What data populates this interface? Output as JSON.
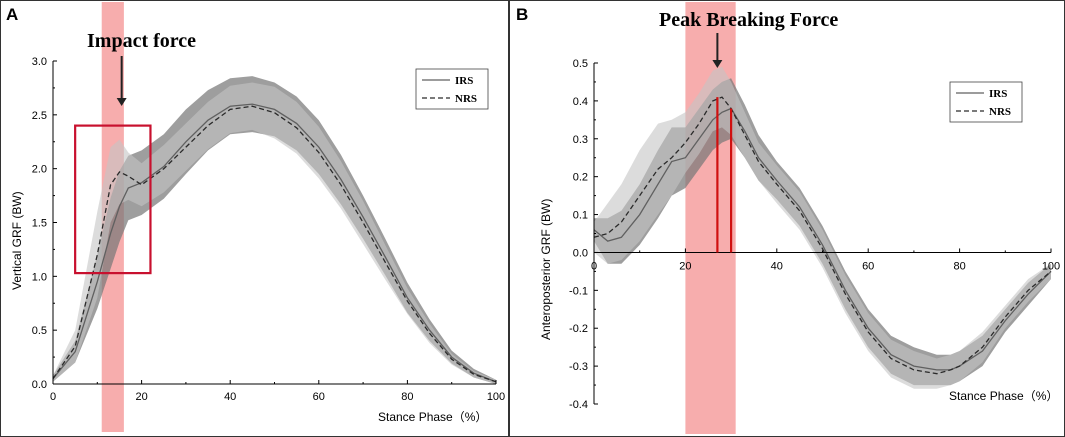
{
  "chart_data": [
    {
      "type": "line",
      "panel_label": "A",
      "annotation": "Impact force",
      "xlabel": "Stance Phase（%）",
      "ylabel": "Vertical GRF (BW)",
      "xlim": [
        0,
        100
      ],
      "ylim": [
        0,
        3.0
      ],
      "xticks": [
        0,
        20,
        40,
        60,
        80,
        100
      ],
      "yticks": [
        0.0,
        0.5,
        1.0,
        1.5,
        2.0,
        2.5,
        3.0
      ],
      "highlight_band_x": [
        11,
        16
      ],
      "highlight_box": {
        "x": [
          5,
          22
        ],
        "y": [
          1.03,
          2.4
        ]
      },
      "arrow_x": 15.5,
      "series": [
        {
          "name": "IRS",
          "style": "solid",
          "x": [
            0,
            5,
            10,
            13,
            15,
            17,
            20,
            25,
            30,
            35,
            40,
            45,
            50,
            55,
            60,
            65,
            70,
            75,
            80,
            85,
            90,
            95,
            100
          ],
          "mean": [
            0.05,
            0.3,
            0.95,
            1.4,
            1.65,
            1.82,
            1.87,
            2.02,
            2.25,
            2.45,
            2.58,
            2.6,
            2.55,
            2.42,
            2.2,
            1.9,
            1.55,
            1.18,
            0.8,
            0.5,
            0.25,
            0.1,
            0.02
          ],
          "sd": [
            0.03,
            0.1,
            0.25,
            0.33,
            0.33,
            0.3,
            0.3,
            0.3,
            0.3,
            0.28,
            0.26,
            0.26,
            0.25,
            0.25,
            0.25,
            0.23,
            0.2,
            0.17,
            0.14,
            0.1,
            0.06,
            0.04,
            0.02
          ]
        },
        {
          "name": "NRS",
          "style": "dashed",
          "x": [
            0,
            5,
            10,
            13,
            15,
            17,
            20,
            25,
            30,
            35,
            40,
            45,
            50,
            55,
            60,
            65,
            70,
            75,
            80,
            85,
            90,
            95,
            100
          ],
          "mean": [
            0.05,
            0.35,
            1.2,
            1.85,
            1.97,
            1.93,
            1.85,
            2.0,
            2.2,
            2.4,
            2.55,
            2.58,
            2.52,
            2.38,
            2.15,
            1.85,
            1.5,
            1.13,
            0.77,
            0.47,
            0.23,
            0.09,
            0.02
          ],
          "sd": [
            0.03,
            0.15,
            0.4,
            0.35,
            0.3,
            0.22,
            0.2,
            0.22,
            0.22,
            0.22,
            0.22,
            0.22,
            0.24,
            0.24,
            0.24,
            0.22,
            0.2,
            0.16,
            0.12,
            0.09,
            0.05,
            0.03,
            0.02
          ]
        }
      ]
    },
    {
      "type": "line",
      "panel_label": "B",
      "annotation": "Peak Breaking Force",
      "xlabel": "Stance Phase（%）",
      "ylabel": "Anteroposterior GRF (BW)",
      "xlim": [
        0,
        100
      ],
      "ylim": [
        -0.4,
        0.5
      ],
      "xticks": [
        0,
        20,
        40,
        60,
        80,
        100
      ],
      "yticks": [
        -0.4,
        -0.3,
        -0.2,
        -0.1,
        0.0,
        0.1,
        0.2,
        0.3,
        0.4,
        0.5
      ],
      "highlight_band_x": [
        20,
        31
      ],
      "peak_lines": [
        {
          "x": 27,
          "y": 0.41
        },
        {
          "x": 30,
          "y": 0.38
        }
      ],
      "arrow_x": 27,
      "series": [
        {
          "name": "IRS",
          "style": "solid",
          "x": [
            0,
            3,
            6,
            10,
            14,
            17,
            20,
            23,
            26,
            28,
            30,
            33,
            36,
            40,
            45,
            50,
            55,
            60,
            65,
            70,
            75,
            78,
            80,
            85,
            90,
            95,
            100
          ],
          "mean": [
            0.06,
            0.03,
            0.04,
            0.1,
            0.18,
            0.24,
            0.25,
            0.3,
            0.35,
            0.37,
            0.38,
            0.32,
            0.25,
            0.19,
            0.12,
            0.02,
            -0.1,
            -0.2,
            -0.27,
            -0.3,
            -0.31,
            -0.31,
            -0.3,
            -0.26,
            -0.18,
            -0.11,
            -0.05
          ],
          "sd": [
            0.03,
            0.06,
            0.07,
            0.08,
            0.09,
            0.09,
            0.08,
            0.08,
            0.08,
            0.08,
            0.08,
            0.07,
            0.06,
            0.05,
            0.05,
            0.05,
            0.05,
            0.05,
            0.05,
            0.05,
            0.04,
            0.04,
            0.04,
            0.04,
            0.03,
            0.03,
            0.02
          ]
        },
        {
          "name": "NRS",
          "style": "dashed",
          "x": [
            0,
            3,
            6,
            10,
            14,
            17,
            20,
            23,
            26,
            28,
            30,
            33,
            36,
            40,
            45,
            50,
            55,
            60,
            65,
            70,
            75,
            78,
            80,
            85,
            90,
            95,
            100
          ],
          "mean": [
            0.04,
            0.05,
            0.08,
            0.15,
            0.22,
            0.25,
            0.29,
            0.34,
            0.4,
            0.41,
            0.38,
            0.31,
            0.24,
            0.18,
            0.11,
            0.01,
            -0.11,
            -0.21,
            -0.28,
            -0.31,
            -0.32,
            -0.31,
            -0.3,
            -0.25,
            -0.17,
            -0.1,
            -0.05
          ],
          "sd": [
            0.04,
            0.08,
            0.1,
            0.12,
            0.12,
            0.1,
            0.08,
            0.08,
            0.08,
            0.08,
            0.07,
            0.06,
            0.05,
            0.05,
            0.05,
            0.05,
            0.05,
            0.05,
            0.05,
            0.05,
            0.04,
            0.04,
            0.04,
            0.04,
            0.03,
            0.03,
            0.02
          ]
        }
      ]
    }
  ],
  "colors": {
    "band": "#f48a8a",
    "box": "#c8102e",
    "peak_line": "#d01010",
    "irs_band": "#787878",
    "nrs_band": "#c4c4c4",
    "irs_line": "#606060",
    "nrs_line": "#2a2a2a"
  }
}
